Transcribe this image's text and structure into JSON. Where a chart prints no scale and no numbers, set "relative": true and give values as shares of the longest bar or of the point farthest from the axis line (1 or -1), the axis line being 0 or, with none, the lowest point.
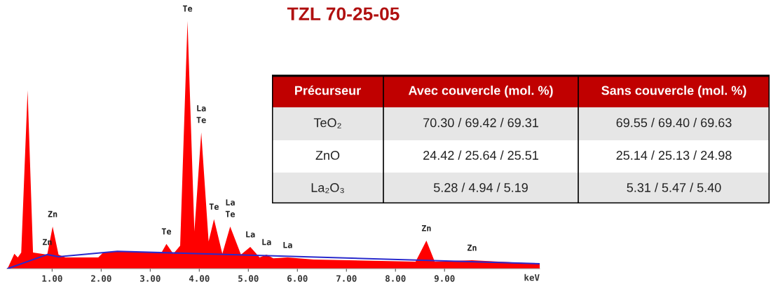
{
  "chart_data": [
    {
      "type": "area",
      "title": "TZL 70-25-05",
      "relative": true,
      "xlabel": "keV",
      "grid": false,
      "tick_labels": "x",
      "legend": false,
      "xlim": [
        0.08,
        10.94
      ],
      "xticks": [
        {
          "value": 1,
          "label": "1.00"
        },
        {
          "value": 2,
          "label": "2.00"
        },
        {
          "value": 3,
          "label": "3.00"
        },
        {
          "value": 4,
          "label": "4.00"
        },
        {
          "value": 5,
          "label": "5.00"
        },
        {
          "value": 6,
          "label": "6.00"
        },
        {
          "value": 7,
          "label": "7.00"
        },
        {
          "value": 8,
          "label": "8.00"
        },
        {
          "value": 9,
          "label": "9.00"
        }
      ],
      "series": [
        {
          "type": "area",
          "color": "#ff0000",
          "x": [
            0.09,
            0.23,
            0.3,
            0.37,
            0.5,
            0.61,
            0.9,
            1.01,
            1.13,
            1.27,
            1.94,
            2.04,
            2.33,
            2.99,
            3.23,
            3.33,
            3.47,
            3.61,
            3.76,
            3.9,
            4.04,
            4.19,
            4.3,
            4.47,
            4.63,
            4.85,
            5.04,
            5.23,
            5.37,
            5.51,
            5.8,
            6.33,
            8.41,
            8.63,
            8.8,
            9.56,
            10.94
          ],
          "values": [
            0.0,
            0.06,
            0.045,
            0.065,
            0.72,
            0.065,
            0.057,
            0.17,
            0.057,
            0.045,
            0.045,
            0.065,
            0.07,
            0.065,
            0.065,
            0.1,
            0.06,
            0.093,
            1.0,
            0.15,
            0.55,
            0.11,
            0.2,
            0.06,
            0.17,
            0.057,
            0.088,
            0.045,
            0.057,
            0.042,
            0.045,
            0.037,
            0.028,
            0.113,
            0.028,
            0.034,
            0.02
          ]
        },
        {
          "type": "line",
          "color": "#2a2acc",
          "x": [
            0.09,
            0.9,
            1.13,
            2.33,
            10.94
          ],
          "values": [
            0.0,
            0.057,
            0.048,
            0.07,
            0.02
          ]
        }
      ],
      "annotations": [
        {
          "text": "Zn",
          "x": 1.01,
          "y": 0.17
        },
        {
          "text": "Zn",
          "x": 0.9,
          "y": 0.057
        },
        {
          "text": "Te",
          "x": 3.33,
          "y": 0.1
        },
        {
          "text": "Te",
          "x": 3.76,
          "y": 1.0
        },
        {
          "text": "Te",
          "x": 4.04,
          "y": 0.55
        },
        {
          "text": "La",
          "x": 4.04,
          "y": 0.55
        },
        {
          "text": "Te",
          "x": 4.3,
          "y": 0.2
        },
        {
          "text": "Te",
          "x": 4.63,
          "y": 0.17
        },
        {
          "text": "La",
          "x": 4.63,
          "y": 0.17
        },
        {
          "text": "La",
          "x": 5.04,
          "y": 0.088
        },
        {
          "text": "La",
          "x": 5.37,
          "y": 0.057
        },
        {
          "text": "La",
          "x": 5.8,
          "y": 0.045
        },
        {
          "text": "Zn",
          "x": 8.63,
          "y": 0.113
        },
        {
          "text": "Zn",
          "x": 9.56,
          "y": 0.034
        }
      ]
    },
    {
      "type": "other",
      "color": "#c00000",
      "categories": [
        "Précurseur",
        "Avec couvercle (mol. %)",
        "Sans couvercle (mol. %)"
      ],
      "y_categories": [
        "TeO₂",
        "ZnO",
        "La₂O₃"
      ],
      "cell_labels": [
        [
          "70.30 / 69.42 / 69.31",
          "69.55 / 69.40 / 69.63"
        ],
        [
          "24.42 / 25.64 / 25.51",
          "25.14 / 25.13 / 24.98"
        ],
        [
          "5.28 / 4.94 / 5.19",
          "5.31 / 5.47 / 5.40"
        ]
      ]
    }
  ]
}
